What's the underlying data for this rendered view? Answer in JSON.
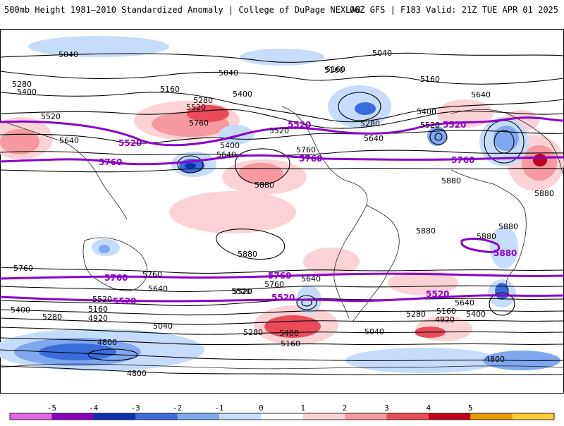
{
  "header": {
    "left_title": "500mb Height 1981–2010 Standardized Anomaly | College of DuPage NEXLAB",
    "right_title": "06Z GFS | F183 Valid: 21Z TUE APR 01 2025"
  },
  "colorbar": {
    "tick_labels": [
      "-5",
      "-4",
      "-3",
      "-2",
      "-1",
      "0",
      "1",
      "2",
      "3",
      "4",
      "5"
    ],
    "colors": [
      "#e066e6",
      "#8a00b8",
      "#0a2fb0",
      "#3a6cdc",
      "#7fa8ef",
      "#c5dcfa",
      "#ffffff",
      "#fbd3d6",
      "#f69a9f",
      "#e84c58",
      "#c0001a",
      "#e89b00",
      "#ffcc33"
    ]
  },
  "map": {
    "black_contour_labels": [
      "5040",
      "5040",
      "5280",
      "5400",
      "5160",
      "5040",
      "5520",
      "5280",
      "5520",
      "5400",
      "5640",
      "5760",
      "5160",
      "5160",
      "5160",
      "5400",
      "5280",
      "5640",
      "5400",
      "5520",
      "5640",
      "5760",
      "5520",
      "5640",
      "5880",
      "5880",
      "5880",
      "5880",
      "5880",
      "5880",
      "5880",
      "5760",
      "5760",
      "5640",
      "5640",
      "5520",
      "5520",
      "5400",
      "5400",
      "5280",
      "5280",
      "5160",
      "5160",
      "5040",
      "5040",
      "4920",
      "4920",
      "4800",
      "4800",
      "4800",
      "5520",
      "5640",
      "5400",
      "5760",
      "5160",
      "5280"
    ],
    "purple_contour_labels": [
      "5520",
      "5520",
      "5520",
      "5520",
      "5760",
      "5760",
      "5760",
      "5760",
      "5760",
      "5520",
      "5520",
      "5880"
    ],
    "colors": {
      "ref_contour": "#8b00c9",
      "height_contour": "#000000",
      "coastline": "#000000"
    }
  }
}
